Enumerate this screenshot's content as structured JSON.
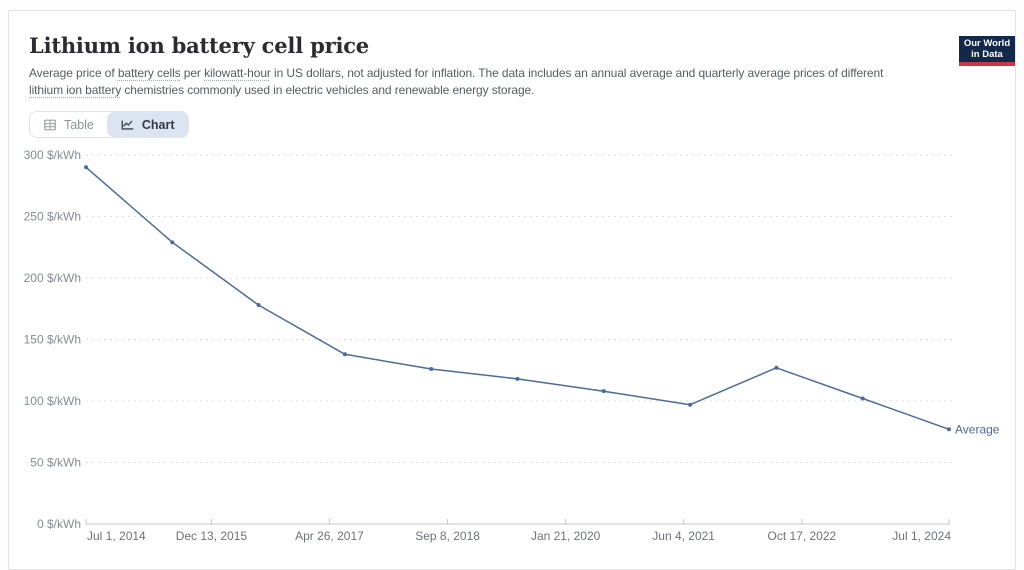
{
  "header": {
    "title": "Lithium ion battery cell price",
    "subtitle_parts": [
      {
        "text": "Average price of ",
        "link": false
      },
      {
        "text": "battery cells",
        "link": true
      },
      {
        "text": " per ",
        "link": false
      },
      {
        "text": "kilowatt-hour",
        "link": true
      },
      {
        "text": " in US dollars, not adjusted for inflation. The data includes an annual average and quarterly average prices of different ",
        "link": false
      },
      {
        "text": "lithium ion battery",
        "link": true
      },
      {
        "text": " chemistries commonly used in electric vehicles and renewable energy storage.",
        "link": false
      }
    ],
    "logo": {
      "line1": "Our World",
      "line2": "in Data",
      "bg": "#12294b",
      "accent": "#cf3540"
    }
  },
  "tabs": [
    {
      "label": "Table",
      "icon": "table-icon",
      "active": false
    },
    {
      "label": "Chart",
      "icon": "line-chart-icon",
      "active": true
    }
  ],
  "chart_data": {
    "type": "line",
    "unit": "$/kWh",
    "x_range": [
      2014.5,
      2024.5
    ],
    "y_range": [
      0,
      300
    ],
    "grid": "dashed-horizontal",
    "legend_position": "end-of-line-label",
    "x_ticks": [
      {
        "label": "Jul 1, 2014",
        "x": 2014.5
      },
      {
        "label": "Dec 13, 2015",
        "x": 2015.953
      },
      {
        "label": "Apr 26, 2017",
        "x": 2017.321
      },
      {
        "label": "Sep 8, 2018",
        "x": 2018.69
      },
      {
        "label": "Jan 21, 2020",
        "x": 2020.058
      },
      {
        "label": "Jun 4, 2021",
        "x": 2021.425
      },
      {
        "label": "Oct 17, 2022",
        "x": 2022.795
      },
      {
        "label": "Jul 1, 2024",
        "x": 2024.5
      }
    ],
    "y_ticks": [
      {
        "label": "0 $/kWh",
        "value": 0
      },
      {
        "label": "50 $/kWh",
        "value": 50
      },
      {
        "label": "100 $/kWh",
        "value": 100
      },
      {
        "label": "150 $/kWh",
        "value": 150
      },
      {
        "label": "200 $/kWh",
        "value": 200
      },
      {
        "label": "250 $/kWh",
        "value": 250
      },
      {
        "label": "300 $/kWh",
        "value": 300
      }
    ],
    "series": [
      {
        "name": "Average",
        "color": "#4c6a9c",
        "x": [
          2014.5,
          2015.5,
          2016.5,
          2017.5,
          2018.5,
          2019.5,
          2020.5,
          2021.5,
          2022.5,
          2023.5,
          2024.5
        ],
        "values": [
          290,
          229,
          178,
          138,
          126,
          118,
          108,
          97,
          127,
          102,
          77
        ]
      }
    ],
    "colors": {
      "gridline": "#dedede",
      "axis_line": "#c4c4c4",
      "y_label": "#878c94",
      "x_label": "#6d7177"
    }
  }
}
